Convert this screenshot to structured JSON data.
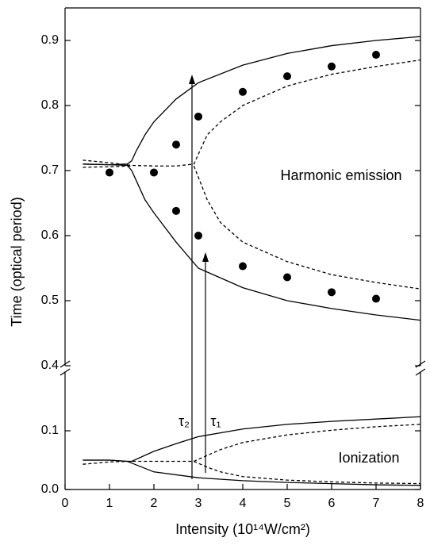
{
  "chart_data": [
    {
      "type": "line",
      "ylabel": "Time (optical period)",
      "xlim": [
        0,
        8
      ],
      "ylim": [
        0.4,
        0.95
      ],
      "yticks": [
        0.4,
        0.5,
        0.6,
        0.7,
        0.8,
        0.9
      ],
      "annotations": [
        "Harmonic emission"
      ],
      "series": [
        {
          "color": "#000000",
          "line_style": "solid",
          "x": [
            0.4,
            1.0,
            1.4,
            1.5,
            1.6,
            1.8,
            2.0,
            2.5,
            3.0,
            4.0,
            5.0,
            6.0,
            7.0,
            8.0
          ],
          "values": [
            0.71,
            0.709,
            0.71,
            0.715,
            0.73,
            0.755,
            0.775,
            0.81,
            0.835,
            0.862,
            0.88,
            0.892,
            0.9,
            0.906
          ]
        },
        {
          "color": "#000000",
          "line_style": "solid",
          "x": [
            0.4,
            1.0,
            1.4,
            1.5,
            1.6,
            1.8,
            2.0,
            2.5,
            3.0,
            4.0,
            5.0,
            6.0,
            7.0,
            8.0
          ],
          "values": [
            0.71,
            0.709,
            0.708,
            0.7,
            0.685,
            0.655,
            0.635,
            0.59,
            0.55,
            0.52,
            0.5,
            0.488,
            0.478,
            0.47
          ]
        },
        {
          "color": "#000000",
          "line_style": "dashed",
          "x": [
            0.4,
            1.0,
            1.5,
            2.0,
            2.5,
            2.9,
            3.0,
            3.2,
            3.5,
            4.0,
            5.0,
            6.0,
            7.0,
            8.0
          ],
          "values": [
            0.716,
            0.712,
            0.708,
            0.707,
            0.707,
            0.71,
            0.725,
            0.755,
            0.775,
            0.8,
            0.83,
            0.848,
            0.86,
            0.87
          ]
        },
        {
          "color": "#000000",
          "line_style": "dashed",
          "x": [
            0.4,
            1.0,
            1.5
          ],
          "values": [
            0.705,
            0.706,
            0.707
          ]
        },
        {
          "color": "#000000",
          "line_style": "dashed",
          "x": [
            2.9,
            3.0,
            3.2,
            3.5,
            4.0,
            5.0,
            6.0,
            7.0,
            8.0
          ],
          "values": [
            0.707,
            0.69,
            0.655,
            0.62,
            0.59,
            0.56,
            0.54,
            0.528,
            0.518
          ]
        }
      ],
      "points": {
        "color": "#000000",
        "x": [
          1,
          2,
          2.5,
          2.5,
          3,
          3,
          4,
          4,
          5,
          5,
          6,
          6,
          7,
          7
        ],
        "values": [
          0.697,
          0.697,
          0.74,
          0.638,
          0.783,
          0.6,
          0.821,
          0.553,
          0.845,
          0.536,
          0.86,
          0.513,
          0.878,
          0.503
        ]
      }
    },
    {
      "type": "line",
      "xlabel": "Intensity (10¹⁴W/cm²)",
      "xlim": [
        0,
        8
      ],
      "xticks": [
        0,
        1,
        2,
        3,
        4,
        5,
        6,
        7,
        8
      ],
      "ylim": [
        0,
        0.2
      ],
      "yticks": [
        {
          "value": 0,
          "label": "0.0"
        },
        0.1
      ],
      "annotations": [
        "Ionization",
        "τ₂",
        "τ₁"
      ],
      "series": [
        {
          "color": "#000000",
          "line_style": "solid",
          "x": [
            0.4,
            1.0,
            1.4,
            1.5,
            2.0,
            2.5,
            3.0,
            4.0,
            5.0,
            6.0,
            7.0,
            8.0
          ],
          "values": [
            0.05,
            0.05,
            0.048,
            0.048,
            0.065,
            0.078,
            0.09,
            0.103,
            0.111,
            0.116,
            0.12,
            0.124
          ]
        },
        {
          "color": "#000000",
          "line_style": "solid",
          "x": [
            0.4,
            1.0,
            1.4,
            1.5,
            2.0,
            3.0,
            4.0,
            5.0,
            6.0,
            7.0,
            8.0
          ],
          "values": [
            0.05,
            0.05,
            0.048,
            0.045,
            0.03,
            0.02,
            0.015,
            0.012,
            0.01,
            0.008,
            0.007
          ]
        },
        {
          "color": "#000000",
          "line_style": "dashed",
          "x": [
            0.4,
            1.0,
            1.5,
            2.0,
            2.5,
            2.9,
            3.2,
            3.5,
            4.0,
            5.0,
            6.0,
            7.0,
            8.0
          ],
          "values": [
            0.043,
            0.047,
            0.048,
            0.048,
            0.048,
            0.048,
            0.058,
            0.068,
            0.08,
            0.093,
            0.101,
            0.107,
            0.111
          ]
        },
        {
          "color": "#000000",
          "line_style": "dashed",
          "x": [
            2.9,
            3.2,
            3.5,
            4.0,
            5.0,
            6.0,
            7.0,
            8.0
          ],
          "values": [
            0.048,
            0.038,
            0.03,
            0.022,
            0.016,
            0.013,
            0.011,
            0.01
          ]
        }
      ]
    }
  ]
}
